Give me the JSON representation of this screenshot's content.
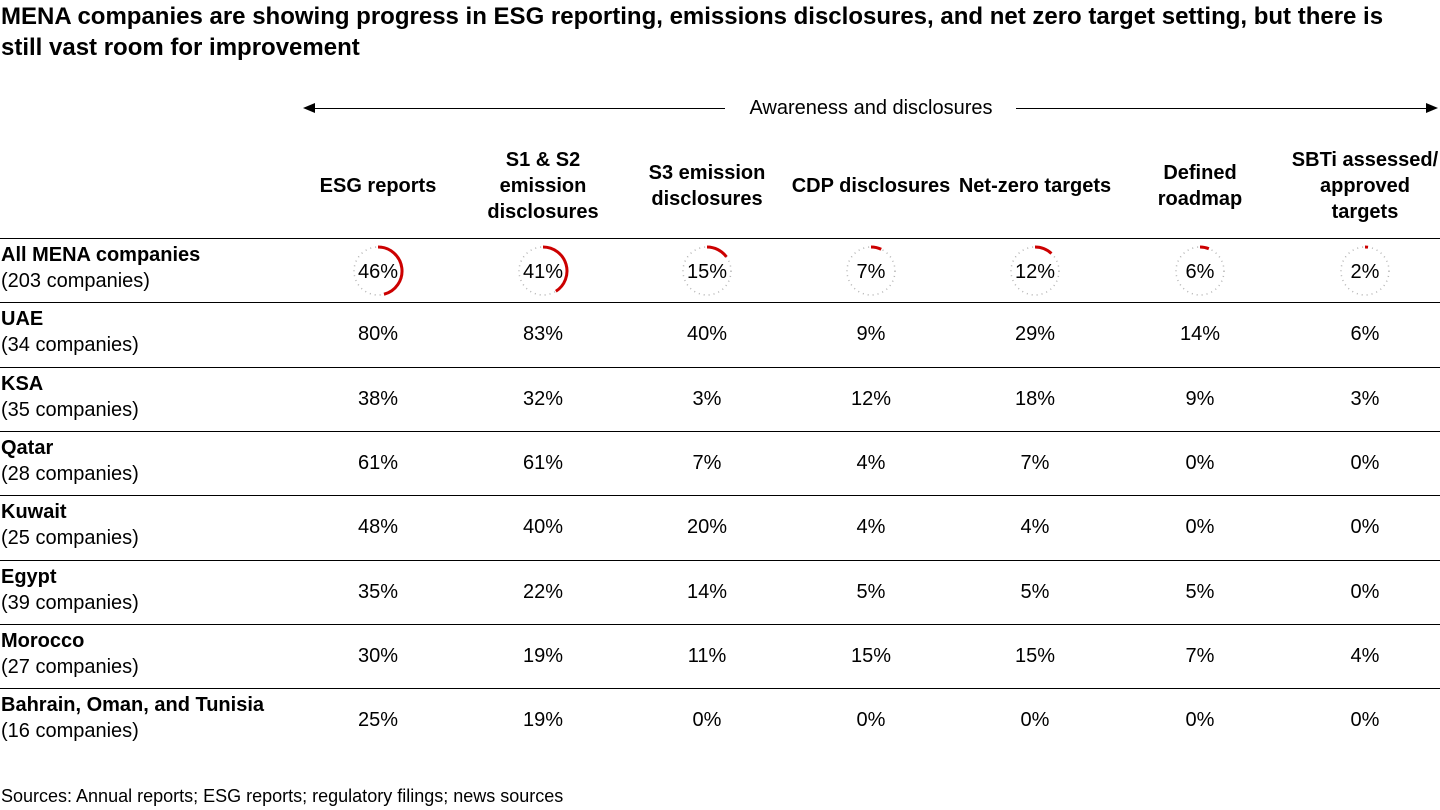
{
  "title": "MENA companies are showing progress in ESG reporting, emissions disclosures, and net zero target setting, but there is still vast room for improvement",
  "group_label": "Awareness and disclosures",
  "source": "Sources: Annual reports; ESG reports; regulatory filings; news sources",
  "colors": {
    "accent": "#cc0000",
    "track": "#b4b4b4",
    "text": "#000000"
  },
  "chart_data": {
    "type": "table",
    "title": "MENA companies are showing progress in ESG reporting, emissions disclosures, and net zero target setting, but there is still vast room for improvement",
    "column_group": "Awareness and disclosures",
    "columns": [
      "ESG reports",
      "S1 & S2 emission disclosures",
      "S3 emission disclosures",
      "CDP disclosures",
      "Net-zero targets",
      "Defined roadmap",
      "SBTi assessed/ approved targets"
    ],
    "rows": [
      {
        "label": "All MENA companies",
        "sublabel": "(203 companies)",
        "values": [
          46,
          41,
          15,
          7,
          12,
          6,
          2
        ],
        "display": [
          "46%",
          "41%",
          "15%",
          "7%",
          "12%",
          "6%",
          "2%"
        ],
        "gauge": true
      },
      {
        "label": "UAE",
        "sublabel": "(34 companies)",
        "values": [
          80,
          83,
          40,
          9,
          29,
          14,
          6
        ],
        "display": [
          "80%",
          "83%",
          "40%",
          "9%",
          "29%",
          "14%",
          "6%"
        ]
      },
      {
        "label": "KSA",
        "sublabel": "(35 companies)",
        "values": [
          38,
          32,
          3,
          12,
          18,
          9,
          3
        ],
        "display": [
          "38%",
          "32%",
          "3%",
          "12%",
          "18%",
          "9%",
          "3%"
        ]
      },
      {
        "label": "Qatar",
        "sublabel": "(28 companies)",
        "values": [
          61,
          61,
          7,
          4,
          7,
          0,
          0
        ],
        "display": [
          "61%",
          "61%",
          "7%",
          "4%",
          "7%",
          "0%",
          "0%"
        ]
      },
      {
        "label": "Kuwait",
        "sublabel": "(25 companies)",
        "values": [
          48,
          40,
          20,
          4,
          4,
          0,
          0
        ],
        "display": [
          "48%",
          "40%",
          "20%",
          "4%",
          "4%",
          "0%",
          "0%"
        ]
      },
      {
        "label": "Egypt",
        "sublabel": "(39 companies)",
        "values": [
          35,
          22,
          14,
          5,
          5,
          5,
          0
        ],
        "display": [
          "35%",
          "22%",
          "14%",
          "5%",
          "5%",
          "5%",
          "0%"
        ]
      },
      {
        "label": "Morocco",
        "sublabel": "(27 companies)",
        "values": [
          30,
          19,
          11,
          15,
          15,
          7,
          4
        ],
        "display": [
          "30%",
          "19%",
          "11%",
          "15%",
          "15%",
          "7%",
          "4%"
        ]
      },
      {
        "label": "Bahrain, Oman, and Tunisia",
        "sublabel": "(16 companies)",
        "values": [
          25,
          19,
          0,
          0,
          0,
          0,
          0
        ],
        "display": [
          "25%",
          "19%",
          "0%",
          "0%",
          "0%",
          "0%",
          "0%"
        ]
      }
    ]
  }
}
